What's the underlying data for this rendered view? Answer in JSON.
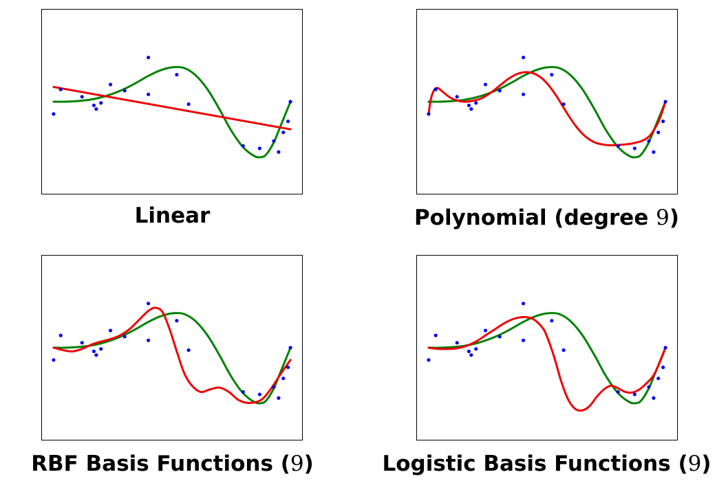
{
  "colors": {
    "data_points": "#0000ee",
    "true_function": "#008000",
    "fitted_model": "#ee0000",
    "frame": "#000000"
  },
  "chart_data": [
    {
      "type": "scatter",
      "title": "Linear",
      "title_parts": {
        "text": "Linear",
        "number": "",
        "suffix": ""
      },
      "xlim": [
        0,
        1
      ],
      "ylim": [
        -1.5,
        1.5
      ],
      "grid": false,
      "points": {
        "x": [
          0,
          0.03,
          0.12,
          0.17,
          0.18,
          0.2,
          0.24,
          0.3,
          0.4,
          0.4,
          0.52,
          0.57,
          0.8,
          0.87,
          0.93,
          0.95,
          0.97,
          0.99,
          1.0
        ],
        "y": [
          -0.2,
          0.2,
          0.08,
          -0.06,
          -0.12,
          -0.02,
          0.28,
          0.18,
          0.72,
          0.12,
          0.44,
          -0.04,
          -0.72,
          -0.76,
          -0.64,
          -0.82,
          -0.5,
          -0.32,
          0.0
        ]
      },
      "true_function": {
        "x": [
          0,
          0.05,
          0.1,
          0.15,
          0.2,
          0.25,
          0.3,
          0.35,
          0.4,
          0.45,
          0.5,
          0.55,
          0.6,
          0.65,
          0.7,
          0.75,
          0.8,
          0.85,
          0.88,
          0.9,
          0.93,
          0.96,
          1.0
        ],
        "y": [
          0,
          0,
          0.01,
          0.03,
          0.07,
          0.13,
          0.21,
          0.31,
          0.42,
          0.51,
          0.56,
          0.55,
          0.43,
          0.2,
          -0.12,
          -0.47,
          -0.74,
          -0.89,
          -0.9,
          -0.85,
          -0.66,
          -0.38,
          0.0
        ]
      },
      "fitted_model": {
        "x": [
          0,
          1
        ],
        "y": [
          0.24,
          -0.45
        ]
      }
    },
    {
      "type": "scatter",
      "title": "Polynomial (degree 9)",
      "title_parts": {
        "text": "Polynomial (degree ",
        "number": "9",
        "suffix": ")"
      },
      "xlim": [
        0,
        1
      ],
      "ylim": [
        -1.5,
        1.5
      ],
      "grid": false,
      "points": {
        "x": [
          0,
          0.03,
          0.12,
          0.17,
          0.18,
          0.2,
          0.24,
          0.3,
          0.4,
          0.4,
          0.52,
          0.57,
          0.8,
          0.87,
          0.93,
          0.95,
          0.97,
          0.99,
          1.0
        ],
        "y": [
          -0.2,
          0.2,
          0.08,
          -0.06,
          -0.12,
          -0.02,
          0.28,
          0.18,
          0.72,
          0.12,
          0.44,
          -0.04,
          -0.72,
          -0.76,
          -0.64,
          -0.82,
          -0.5,
          -0.32,
          0.0
        ]
      },
      "true_function": {
        "x": [
          0,
          0.05,
          0.1,
          0.15,
          0.2,
          0.25,
          0.3,
          0.35,
          0.4,
          0.45,
          0.5,
          0.55,
          0.6,
          0.65,
          0.7,
          0.75,
          0.8,
          0.85,
          0.88,
          0.9,
          0.93,
          0.96,
          1.0
        ],
        "y": [
          0,
          0,
          0.01,
          0.03,
          0.07,
          0.13,
          0.21,
          0.31,
          0.42,
          0.51,
          0.56,
          0.55,
          0.43,
          0.2,
          -0.12,
          -0.47,
          -0.74,
          -0.89,
          -0.9,
          -0.85,
          -0.66,
          -0.38,
          0.0
        ]
      },
      "fitted_model": {
        "x": [
          0,
          0.01,
          0.025,
          0.04,
          0.06,
          0.09,
          0.12,
          0.15,
          0.18,
          0.22,
          0.26,
          0.3,
          0.34,
          0.38,
          0.42,
          0.46,
          0.5,
          0.54,
          0.58,
          0.62,
          0.66,
          0.7,
          0.74,
          0.78,
          0.82,
          0.86,
          0.9,
          0.93,
          0.95,
          0.97,
          0.985,
          1.0
        ],
        "y": [
          -0.2,
          0.05,
          0.2,
          0.22,
          0.16,
          0.07,
          0.02,
          0.0,
          0.01,
          0.05,
          0.14,
          0.26,
          0.38,
          0.46,
          0.48,
          0.43,
          0.3,
          0.09,
          -0.16,
          -0.39,
          -0.56,
          -0.66,
          -0.7,
          -0.71,
          -0.7,
          -0.68,
          -0.64,
          -0.57,
          -0.47,
          -0.33,
          -0.18,
          0.0
        ]
      }
    },
    {
      "type": "scatter",
      "title": "RBF Basis Functions (9)",
      "title_parts": {
        "text": "RBF Basis Functions (",
        "number": "9",
        "suffix": ")"
      },
      "xlim": [
        0,
        1
      ],
      "ylim": [
        -1.5,
        1.5
      ],
      "grid": false,
      "points": {
        "x": [
          0,
          0.03,
          0.12,
          0.17,
          0.18,
          0.2,
          0.24,
          0.3,
          0.4,
          0.4,
          0.52,
          0.57,
          0.8,
          0.87,
          0.93,
          0.95,
          0.97,
          0.99,
          1.0
        ],
        "y": [
          -0.2,
          0.2,
          0.08,
          -0.06,
          -0.12,
          -0.02,
          0.28,
          0.18,
          0.72,
          0.12,
          0.44,
          -0.04,
          -0.72,
          -0.76,
          -0.64,
          -0.82,
          -0.5,
          -0.32,
          0.0
        ]
      },
      "true_function": {
        "x": [
          0,
          0.05,
          0.1,
          0.15,
          0.2,
          0.25,
          0.3,
          0.35,
          0.4,
          0.45,
          0.5,
          0.55,
          0.6,
          0.65,
          0.7,
          0.75,
          0.8,
          0.85,
          0.88,
          0.9,
          0.93,
          0.96,
          1.0
        ],
        "y": [
          0,
          0,
          0.01,
          0.03,
          0.07,
          0.13,
          0.21,
          0.31,
          0.42,
          0.51,
          0.56,
          0.55,
          0.43,
          0.2,
          -0.12,
          -0.47,
          -0.74,
          -0.89,
          -0.9,
          -0.85,
          -0.66,
          -0.38,
          0.0
        ]
      },
      "fitted_model": {
        "x": [
          0,
          0.04,
          0.08,
          0.12,
          0.16,
          0.2,
          0.24,
          0.28,
          0.32,
          0.36,
          0.4,
          0.43,
          0.46,
          0.49,
          0.52,
          0.55,
          0.58,
          0.62,
          0.66,
          0.7,
          0.74,
          0.78,
          0.82,
          0.86,
          0.88,
          0.9,
          0.93,
          0.96,
          1.0
        ],
        "y": [
          0.0,
          -0.04,
          -0.06,
          -0.02,
          0.05,
          0.1,
          0.14,
          0.2,
          0.3,
          0.45,
          0.6,
          0.65,
          0.58,
          0.3,
          -0.06,
          -0.4,
          -0.6,
          -0.72,
          -0.68,
          -0.65,
          -0.72,
          -0.85,
          -0.9,
          -0.88,
          -0.84,
          -0.76,
          -0.6,
          -0.42,
          -0.2
        ]
      }
    },
    {
      "type": "scatter",
      "title": "Logistic Basis Functions (9)",
      "title_parts": {
        "text": "Logistic Basis Functions (",
        "number": "9",
        "suffix": ")"
      },
      "xlim": [
        0,
        1
      ],
      "ylim": [
        -1.5,
        1.5
      ],
      "grid": false,
      "points": {
        "x": [
          0,
          0.03,
          0.12,
          0.17,
          0.18,
          0.2,
          0.24,
          0.3,
          0.4,
          0.4,
          0.52,
          0.57,
          0.8,
          0.87,
          0.93,
          0.95,
          0.97,
          0.99,
          1.0
        ],
        "y": [
          -0.2,
          0.2,
          0.08,
          -0.06,
          -0.12,
          -0.02,
          0.28,
          0.18,
          0.72,
          0.12,
          0.44,
          -0.04,
          -0.72,
          -0.76,
          -0.64,
          -0.82,
          -0.5,
          -0.32,
          0.0
        ]
      },
      "true_function": {
        "x": [
          0,
          0.05,
          0.1,
          0.15,
          0.2,
          0.25,
          0.3,
          0.35,
          0.4,
          0.45,
          0.5,
          0.55,
          0.6,
          0.65,
          0.7,
          0.75,
          0.8,
          0.85,
          0.88,
          0.9,
          0.93,
          0.96,
          1.0
        ],
        "y": [
          0,
          0,
          0.01,
          0.03,
          0.07,
          0.13,
          0.21,
          0.31,
          0.42,
          0.51,
          0.56,
          0.55,
          0.43,
          0.2,
          -0.12,
          -0.47,
          -0.74,
          -0.89,
          -0.9,
          -0.85,
          -0.66,
          -0.38,
          0.0
        ]
      },
      "fitted_model": {
        "x": [
          0,
          0.04,
          0.08,
          0.12,
          0.16,
          0.2,
          0.24,
          0.28,
          0.32,
          0.36,
          0.4,
          0.44,
          0.48,
          0.5,
          0.53,
          0.56,
          0.59,
          0.62,
          0.65,
          0.68,
          0.71,
          0.74,
          0.77,
          0.8,
          0.83,
          0.86,
          0.89,
          0.92,
          0.95,
          0.98,
          1.0
        ],
        "y": [
          0.0,
          -0.02,
          -0.02,
          -0.01,
          0.03,
          0.1,
          0.2,
          0.3,
          0.4,
          0.47,
          0.5,
          0.47,
          0.33,
          0.18,
          -0.15,
          -0.55,
          -0.85,
          -1.0,
          -1.02,
          -0.95,
          -0.8,
          -0.68,
          -0.62,
          -0.66,
          -0.72,
          -0.73,
          -0.68,
          -0.58,
          -0.45,
          -0.2,
          0.0
        ]
      }
    }
  ]
}
